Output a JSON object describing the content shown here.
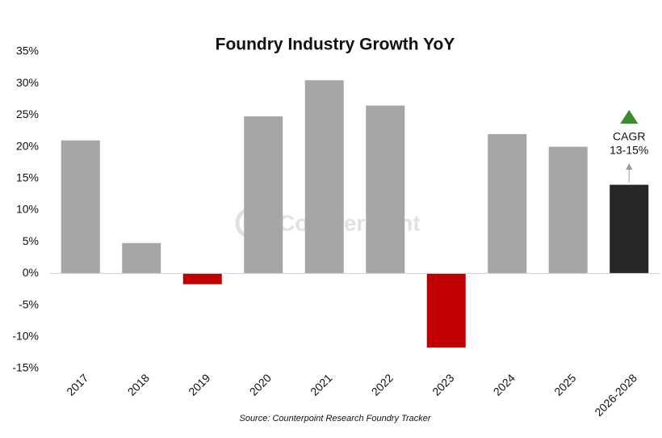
{
  "chart_data": {
    "type": "bar",
    "title": "Foundry Industry Growth YoY",
    "categories": [
      "2017",
      "2018",
      "2019",
      "2020",
      "2021",
      "2022",
      "2023",
      "2024",
      "2025",
      "2026-2028"
    ],
    "values": [
      21,
      4.8,
      -1.7,
      24.8,
      30.5,
      26.5,
      -11.7,
      22,
      20,
      14
    ],
    "colors": [
      "#a6a6a6",
      "#a6a6a6",
      "#c00000",
      "#a6a6a6",
      "#a6a6a6",
      "#a6a6a6",
      "#c00000",
      "#a6a6a6",
      "#a6a6a6",
      "#262626"
    ],
    "ylim": [
      -15,
      35
    ],
    "yticks": [
      {
        "value": -15,
        "label": "-15%"
      },
      {
        "value": -10,
        "label": "-10%"
      },
      {
        "value": -5,
        "label": "-5%"
      },
      {
        "value": 0,
        "label": "0%"
      },
      {
        "value": 5,
        "label": "5%"
      },
      {
        "value": 10,
        "label": "10%"
      },
      {
        "value": 15,
        "label": "15%"
      },
      {
        "value": 20,
        "label": "20%"
      },
      {
        "value": 25,
        "label": "25%"
      },
      {
        "value": 30,
        "label": "30%"
      },
      {
        "value": 35,
        "label": "35%"
      }
    ],
    "grid": false,
    "annotation": [
      "CAGR",
      "13-15%"
    ],
    "watermark": "Counterpoint",
    "source": "Source: Counterpoint Research Foundry Tracker"
  }
}
